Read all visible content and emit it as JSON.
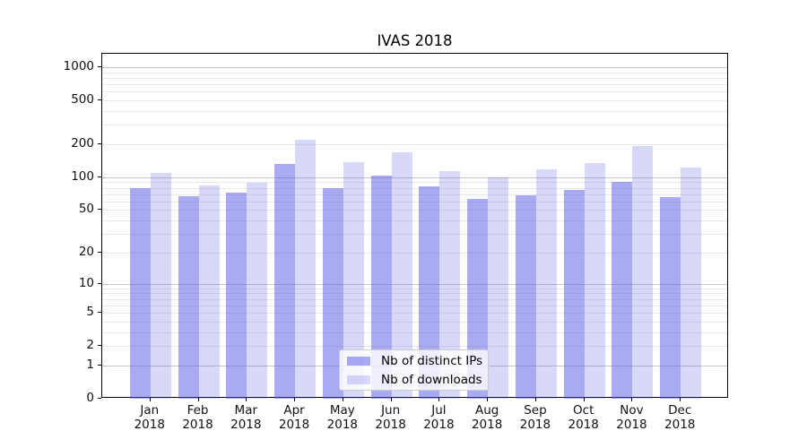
{
  "title": "IVAS 2018",
  "legend": {
    "items": [
      {
        "label": "Nb of distinct IPs"
      },
      {
        "label": "Nb of downloads"
      }
    ]
  },
  "colors": {
    "bar_base_rgb": "85,85,230",
    "distinct_ips_alpha": 0.5,
    "downloads_alpha": 0.23,
    "major_grid": "#c6c6c6",
    "minor_grid": "#e9e9e9",
    "axis": "#000000"
  },
  "y_axis": {
    "scale": "log10(1+y)",
    "ticks": [
      {
        "label": "0",
        "value": 0
      },
      {
        "label": "1",
        "value": 1
      },
      {
        "label": "2",
        "value": 2
      },
      {
        "label": "5",
        "value": 5
      },
      {
        "label": "10",
        "value": 10
      },
      {
        "label": "20",
        "value": 20
      },
      {
        "label": "50",
        "value": 50
      },
      {
        "label": "100",
        "value": 100
      },
      {
        "label": "200",
        "value": 200
      },
      {
        "label": "500",
        "value": 500
      },
      {
        "label": "1000",
        "value": 1000
      }
    ]
  },
  "x_axis": {
    "year": "2018",
    "months": [
      "Jan",
      "Feb",
      "Mar",
      "Apr",
      "May",
      "Jun",
      "Jul",
      "Aug",
      "Sep",
      "Oct",
      "Nov",
      "Dec"
    ]
  },
  "chart_data": {
    "type": "bar",
    "title": "IVAS 2018",
    "categories": [
      "Jan 2018",
      "Feb 2018",
      "Mar 2018",
      "Apr 2018",
      "May 2018",
      "Jun 2018",
      "Jul 2018",
      "Aug 2018",
      "Sep 2018",
      "Oct 2018",
      "Nov 2018",
      "Dec 2018"
    ],
    "series": [
      {
        "name": "Nb of distinct IPs",
        "values": [
          79,
          67,
          72,
          132,
          79,
          104,
          82,
          63,
          68,
          76,
          91,
          66
        ]
      },
      {
        "name": "Nb of downloads",
        "values": [
          109,
          84,
          89,
          220,
          136,
          168,
          114,
          100,
          119,
          134,
          193,
          122
        ]
      }
    ],
    "yscale": "symlog (log10(1+y))",
    "yticks": [
      0,
      1,
      2,
      5,
      10,
      20,
      50,
      100,
      200,
      500,
      1000
    ],
    "ylim": [
      0,
      1316
    ],
    "grid": "horizontal major+minor",
    "legend_position": "lower center",
    "xlabel": "",
    "ylabel": ""
  }
}
